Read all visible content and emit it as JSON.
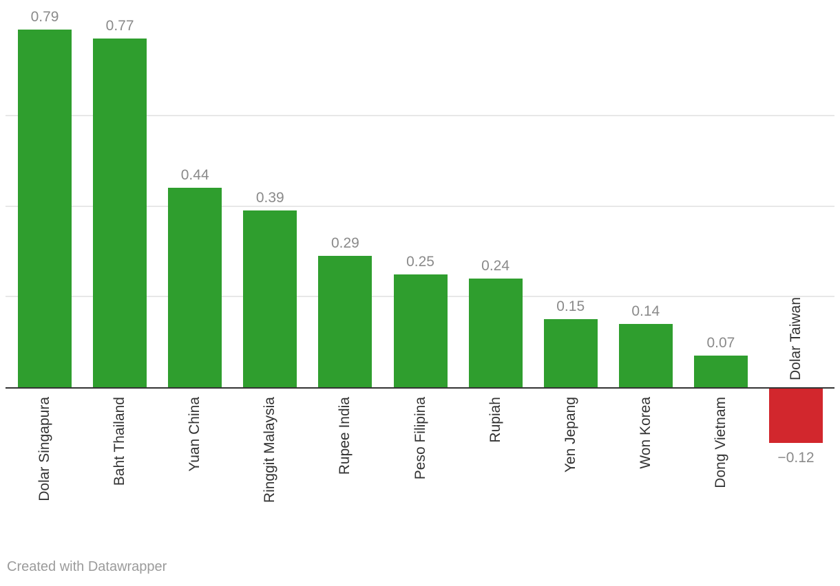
{
  "chart_data": {
    "type": "bar",
    "title": "",
    "xlabel": "",
    "ylabel": "",
    "categories": [
      "Dolar Singapura",
      "Baht Thailand",
      "Yuan China",
      "Ringgit Malaysia",
      "Rupee India",
      "Peso Filipina",
      "Rupiah",
      "Yen Jepang",
      "Won Korea",
      "Dong Vietnam",
      "Dolar Taiwan"
    ],
    "values": [
      0.79,
      0.77,
      0.44,
      0.39,
      0.29,
      0.25,
      0.24,
      0.15,
      0.14,
      0.07,
      -0.12
    ],
    "value_labels": [
      "0.79",
      "0.77",
      "0.44",
      "0.39",
      "0.29",
      "0.25",
      "0.24",
      "0.15",
      "0.14",
      "0.07",
      "−0.12"
    ],
    "ylim": [
      -0.15,
      0.85
    ],
    "gridline_values": [
      0.2,
      0.4,
      0.6
    ],
    "grid": true,
    "legend": false,
    "orientation": "vertical-columns",
    "label_rotation": "90deg-bottom-to-top"
  },
  "colors": {
    "bar_positive": "#2f9e2e",
    "bar_negative": "#d2272d",
    "value_label": "#8a8a8a",
    "category_label": "#333333",
    "gridline": "#e7e7e7",
    "axis": "#333333",
    "credit": "#9b9b9b",
    "background": "#ffffff"
  },
  "footer": {
    "credit_label": "Created with Datawrapper"
  }
}
